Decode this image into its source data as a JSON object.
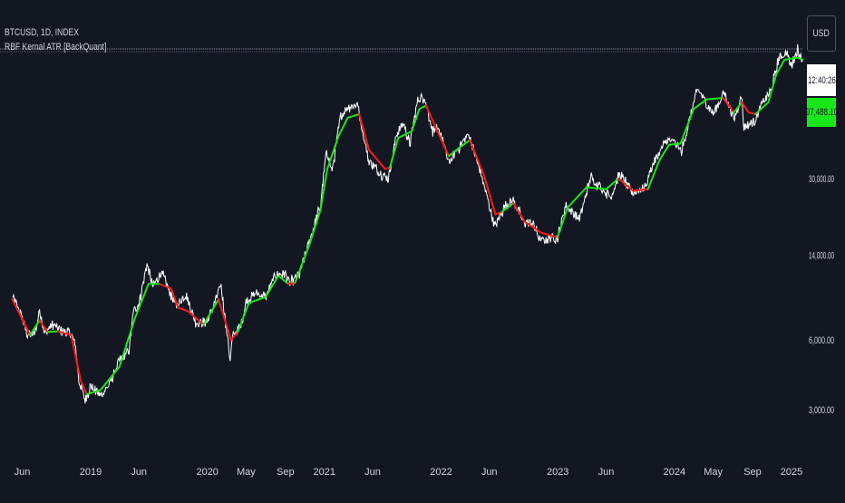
{
  "header": {
    "symbol": "BTCUSD, 1D, INDEX",
    "indicator": "RBF Kernal ATR [BackQuant]"
  },
  "currency_label": "USD",
  "time_badge": "12:40:26",
  "price_badge": "97,488.10",
  "colors": {
    "background": "#131722",
    "price_line": "#ffffff",
    "kernel_up": "#19e619",
    "kernel_down": "#ff1a1a",
    "axis_text": "#d1d4dc",
    "badge_price_bg": "#19e619"
  },
  "chart_data": {
    "type": "line",
    "scale": "log",
    "ylim": [
      2400,
      125000
    ],
    "xlim": [
      "2018-05-01",
      "2025-02-10"
    ],
    "y_ticks": [
      {
        "value": 3000,
        "label": "3,000.00"
      },
      {
        "value": 6000,
        "label": "6,000.00"
      },
      {
        "value": 14000,
        "label": "14,000.00"
      },
      {
        "value": 30000,
        "label": "30,000.00"
      }
    ],
    "x_ticks": [
      {
        "date": "2018-06-01",
        "label": "Jun"
      },
      {
        "date": "2019-01-01",
        "label": "2019"
      },
      {
        "date": "2019-06-01",
        "label": "Jun"
      },
      {
        "date": "2020-01-01",
        "label": "2020"
      },
      {
        "date": "2020-05-01",
        "label": "May"
      },
      {
        "date": "2020-09-01",
        "label": "Sep"
      },
      {
        "date": "2021-01-01",
        "label": "2021"
      },
      {
        "date": "2021-06-01",
        "label": "Jun"
      },
      {
        "date": "2022-01-01",
        "label": "2022"
      },
      {
        "date": "2022-06-01",
        "label": "Jun"
      },
      {
        "date": "2023-01-01",
        "label": "2023"
      },
      {
        "date": "2023-06-01",
        "label": "Jun"
      },
      {
        "date": "2024-01-01",
        "label": "2024"
      },
      {
        "date": "2024-05-01",
        "label": "May"
      },
      {
        "date": "2024-09-01",
        "label": "Sep"
      },
      {
        "date": "2025-01-01",
        "label": "2025"
      }
    ],
    "last_price": 97488.1,
    "series": [
      {
        "name": "BTCUSD",
        "points": [
          [
            "2018-05-01",
            9200
          ],
          [
            "2018-05-15",
            8500
          ],
          [
            "2018-06-01",
            7500
          ],
          [
            "2018-06-15",
            6400
          ],
          [
            "2018-07-01",
            6300
          ],
          [
            "2018-07-15",
            6700
          ],
          [
            "2018-07-25",
            8200
          ],
          [
            "2018-08-10",
            6400
          ],
          [
            "2018-09-01",
            7000
          ],
          [
            "2018-10-01",
            6600
          ],
          [
            "2018-11-01",
            6400
          ],
          [
            "2018-11-15",
            5600
          ],
          [
            "2018-11-25",
            4000
          ],
          [
            "2018-12-15",
            3300
          ],
          [
            "2019-01-01",
            3800
          ],
          [
            "2019-02-01",
            3450
          ],
          [
            "2019-03-01",
            3850
          ],
          [
            "2019-04-01",
            4900
          ],
          [
            "2019-05-01",
            5400
          ],
          [
            "2019-05-15",
            8000
          ],
          [
            "2019-06-01",
            8600
          ],
          [
            "2019-06-26",
            12800
          ],
          [
            "2019-07-15",
            10200
          ],
          [
            "2019-08-10",
            11800
          ],
          [
            "2019-09-01",
            10000
          ],
          [
            "2019-09-25",
            8400
          ],
          [
            "2019-10-26",
            9500
          ],
          [
            "2019-11-25",
            7200
          ],
          [
            "2019-12-15",
            7100
          ],
          [
            "2020-01-01",
            7200
          ],
          [
            "2020-02-13",
            10300
          ],
          [
            "2020-03-12",
            5000
          ],
          [
            "2020-03-20",
            6200
          ],
          [
            "2020-04-15",
            6900
          ],
          [
            "2020-05-01",
            8800
          ],
          [
            "2020-06-01",
            9600
          ],
          [
            "2020-07-01",
            9200
          ],
          [
            "2020-08-01",
            11500
          ],
          [
            "2020-09-01",
            11600
          ],
          [
            "2020-09-15",
            10500
          ],
          [
            "2020-10-15",
            11500
          ],
          [
            "2020-11-01",
            13800
          ],
          [
            "2020-12-01",
            19000
          ],
          [
            "2020-12-20",
            23000
          ],
          [
            "2021-01-08",
            40000
          ],
          [
            "2021-01-25",
            32000
          ],
          [
            "2021-02-21",
            56000
          ],
          [
            "2021-03-13",
            61000
          ],
          [
            "2021-04-14",
            63000
          ],
          [
            "2021-05-19",
            36000
          ],
          [
            "2021-06-22",
            32000
          ],
          [
            "2021-07-20",
            30000
          ],
          [
            "2021-08-15",
            47000
          ],
          [
            "2021-09-06",
            52000
          ],
          [
            "2021-09-25",
            42000
          ],
          [
            "2021-10-20",
            66000
          ],
          [
            "2021-11-10",
            68000
          ],
          [
            "2021-12-04",
            49000
          ],
          [
            "2022-01-01",
            47000
          ],
          [
            "2022-01-24",
            35000
          ],
          [
            "2022-03-28",
            47000
          ],
          [
            "2022-05-10",
            30000
          ],
          [
            "2022-06-18",
            18500
          ],
          [
            "2022-07-20",
            23000
          ],
          [
            "2022-08-15",
            24200
          ],
          [
            "2022-09-15",
            19500
          ],
          [
            "2022-10-15",
            19200
          ],
          [
            "2022-11-09",
            16000
          ],
          [
            "2022-12-15",
            16700
          ],
          [
            "2023-01-01",
            16600
          ],
          [
            "2023-01-25",
            23000
          ],
          [
            "2023-03-10",
            20000
          ],
          [
            "2023-04-14",
            30400
          ],
          [
            "2023-06-15",
            25000
          ],
          [
            "2023-07-14",
            31500
          ],
          [
            "2023-08-20",
            26000
          ],
          [
            "2023-10-01",
            27500
          ],
          [
            "2023-10-25",
            34500
          ],
          [
            "2023-12-08",
            44000
          ],
          [
            "2024-01-01",
            43000
          ],
          [
            "2024-01-23",
            39000
          ],
          [
            "2024-02-28",
            62000
          ],
          [
            "2024-03-14",
            73000
          ],
          [
            "2024-05-01",
            57000
          ],
          [
            "2024-06-05",
            71000
          ],
          [
            "2024-07-05",
            54000
          ],
          [
            "2024-07-29",
            69000
          ],
          [
            "2024-08-05",
            50000
          ],
          [
            "2024-09-06",
            53000
          ],
          [
            "2024-10-01",
            63000
          ],
          [
            "2024-10-29",
            72000
          ],
          [
            "2024-11-22",
            99000
          ],
          [
            "2024-12-17",
            106000
          ],
          [
            "2024-12-30",
            92000
          ],
          [
            "2025-01-20",
            108000
          ],
          [
            "2025-02-05",
            97488
          ]
        ]
      },
      {
        "name": "RBF Kernal ATR",
        "segments": [
          {
            "trend": "down",
            "points": [
              [
                "2018-05-01",
                9000
              ],
              [
                "2018-06-01",
                7400
              ],
              [
                "2018-06-25",
                6300
              ]
            ]
          },
          {
            "trend": "up",
            "points": [
              [
                "2018-06-25",
                6300
              ],
              [
                "2018-07-25",
                7300
              ]
            ]
          },
          {
            "trend": "down",
            "points": [
              [
                "2018-07-25",
                7300
              ],
              [
                "2018-08-20",
                6500
              ]
            ]
          },
          {
            "trend": "up",
            "points": [
              [
                "2018-08-20",
                6500
              ],
              [
                "2018-09-20",
                6550
              ]
            ]
          },
          {
            "trend": "down",
            "points": [
              [
                "2018-09-20",
                6550
              ],
              [
                "2018-11-01",
                6300
              ],
              [
                "2018-12-01",
                4000
              ],
              [
                "2018-12-20",
                3500
              ]
            ]
          },
          {
            "trend": "up",
            "points": [
              [
                "2018-12-20",
                3500
              ],
              [
                "2019-02-01",
                3650
              ],
              [
                "2019-04-01",
                4600
              ],
              [
                "2019-05-20",
                7500
              ],
              [
                "2019-07-01",
                10500
              ],
              [
                "2019-08-05",
                10500
              ]
            ]
          },
          {
            "trend": "down",
            "points": [
              [
                "2019-08-05",
                10500
              ],
              [
                "2019-09-10",
                10000
              ],
              [
                "2019-10-01",
                8300
              ],
              [
                "2019-11-01",
                8000
              ],
              [
                "2019-12-20",
                7000
              ]
            ]
          },
          {
            "trend": "up",
            "points": [
              [
                "2019-12-20",
                7000
              ],
              [
                "2020-02-05",
                9000
              ]
            ]
          },
          {
            "trend": "down",
            "points": [
              [
                "2020-02-05",
                9000
              ],
              [
                "2020-03-15",
                6000
              ],
              [
                "2020-04-05",
                6500
              ]
            ]
          },
          {
            "trend": "up",
            "points": [
              [
                "2020-04-05",
                6500
              ],
              [
                "2020-05-10",
                8700
              ],
              [
                "2020-07-01",
                9200
              ],
              [
                "2020-08-10",
                11400
              ],
              [
                "2020-09-10",
                10500
              ]
            ]
          },
          {
            "trend": "down",
            "points": [
              [
                "2020-09-10",
                10500
              ],
              [
                "2020-10-01",
                10600
              ]
            ]
          },
          {
            "trend": "up",
            "points": [
              [
                "2020-10-01",
                10600
              ],
              [
                "2020-11-15",
                15500
              ],
              [
                "2020-12-20",
                22000
              ],
              [
                "2021-01-10",
                33000
              ],
              [
                "2021-02-15",
                46000
              ],
              [
                "2021-03-15",
                55000
              ],
              [
                "2021-04-20",
                57000
              ]
            ]
          },
          {
            "trend": "down",
            "points": [
              [
                "2021-04-20",
                57000
              ],
              [
                "2021-05-20",
                40000
              ],
              [
                "2021-07-10",
                33000
              ],
              [
                "2021-07-25",
                33500
              ]
            ]
          },
          {
            "trend": "up",
            "points": [
              [
                "2021-07-25",
                33500
              ],
              [
                "2021-08-20",
                45000
              ],
              [
                "2021-10-01",
                48000
              ],
              [
                "2021-10-25",
                60000
              ],
              [
                "2021-11-15",
                62000
              ]
            ]
          },
          {
            "trend": "down",
            "points": [
              [
                "2021-11-15",
                62000
              ],
              [
                "2021-12-15",
                50000
              ],
              [
                "2022-01-25",
                37500
              ]
            ]
          },
          {
            "trend": "up",
            "points": [
              [
                "2022-01-25",
                37500
              ],
              [
                "2022-03-01",
                41000
              ],
              [
                "2022-04-01",
                44000
              ]
            ]
          },
          {
            "trend": "down",
            "points": [
              [
                "2022-04-01",
                44000
              ],
              [
                "2022-05-15",
                31000
              ],
              [
                "2022-06-20",
                21000
              ],
              [
                "2022-07-10",
                21500
              ]
            ]
          },
          {
            "trend": "up",
            "points": [
              [
                "2022-07-10",
                21500
              ],
              [
                "2022-08-15",
                23500
              ]
            ]
          },
          {
            "trend": "down",
            "points": [
              [
                "2022-08-15",
                23500
              ],
              [
                "2022-09-20",
                19500
              ],
              [
                "2022-11-10",
                17500
              ],
              [
                "2022-12-31",
                16700
              ]
            ]
          },
          {
            "trend": "up",
            "points": [
              [
                "2022-12-31",
                16700
              ],
              [
                "2023-02-01",
                22500
              ],
              [
                "2023-04-01",
                27500
              ],
              [
                "2023-06-01",
                27000
              ],
              [
                "2023-07-10",
                30000
              ]
            ]
          },
          {
            "trend": "down",
            "points": [
              [
                "2023-07-10",
                30000
              ],
              [
                "2023-08-25",
                26500
              ],
              [
                "2023-10-10",
                27000
              ]
            ]
          },
          {
            "trend": "up",
            "points": [
              [
                "2023-10-10",
                27000
              ],
              [
                "2023-11-15",
                36000
              ],
              [
                "2023-12-15",
                42000
              ],
              [
                "2024-01-20",
                42500
              ],
              [
                "2024-03-01",
                60000
              ],
              [
                "2024-04-10",
                66000
              ]
            ]
          },
          {
            "trend": "up",
            "points": [
              [
                "2024-04-10",
                66000
              ],
              [
                "2024-06-01",
                67000
              ]
            ]
          },
          {
            "trend": "down",
            "points": [
              [
                "2024-06-01",
                67000
              ],
              [
                "2024-07-05",
                58000
              ]
            ]
          },
          {
            "trend": "up",
            "points": [
              [
                "2024-07-05",
                58000
              ],
              [
                "2024-07-30",
                64000
              ]
            ]
          },
          {
            "trend": "down",
            "points": [
              [
                "2024-07-30",
                64000
              ],
              [
                "2024-08-20",
                58000
              ],
              [
                "2024-09-10",
                57000
              ]
            ]
          },
          {
            "trend": "up",
            "points": [
              [
                "2024-09-10",
                57000
              ],
              [
                "2024-10-20",
                64000
              ],
              [
                "2024-11-15",
                85000
              ],
              [
                "2024-12-10",
                98000
              ],
              [
                "2025-01-20",
                100000
              ],
              [
                "2025-02-05",
                98000
              ]
            ]
          }
        ]
      }
    ]
  }
}
